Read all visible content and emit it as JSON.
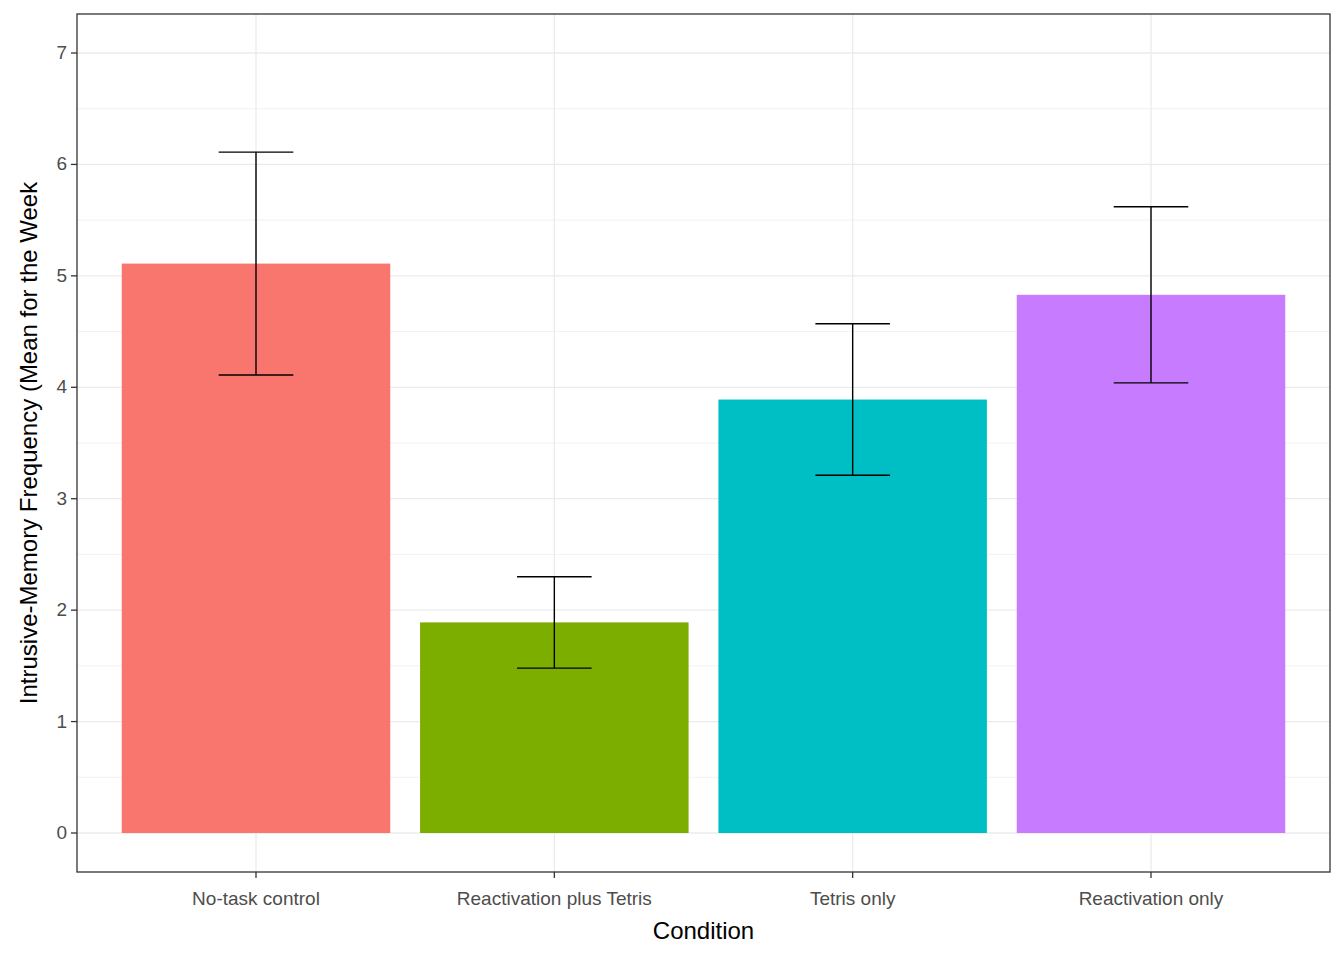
{
  "chart_data": {
    "type": "bar",
    "x_label": "Condition",
    "y_label": "Intrusive-Memory Frequency (Mean for the Week",
    "categories": [
      "No-task control",
      "Reactivation plus Tetris",
      "Tetris only",
      "Reactivation only"
    ],
    "values": [
      5.11,
      1.89,
      3.89,
      4.83
    ],
    "errors": [
      1.0,
      0.41,
      0.68,
      0.79
    ],
    "colors": [
      "#F8766D",
      "#7CAE00",
      "#00BFC4",
      "#C77CFF"
    ],
    "ylim": [
      -0.35,
      7.35
    ],
    "yticks": [
      0,
      1,
      2,
      3,
      4,
      5,
      6,
      7
    ],
    "grid": true
  }
}
